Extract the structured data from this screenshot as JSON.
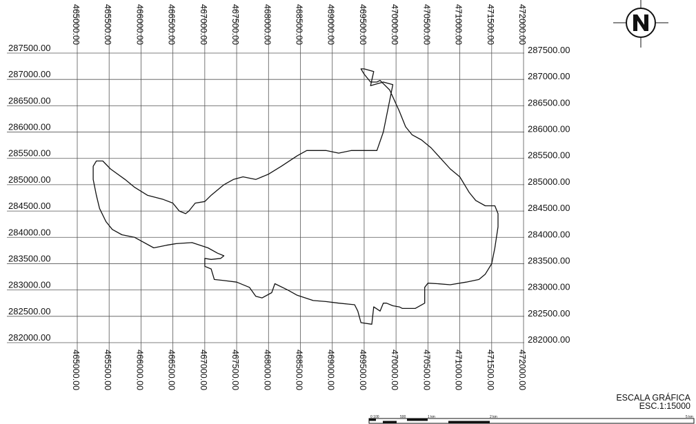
{
  "map": {
    "x_ticks": [
      "465000.00",
      "465500.00",
      "466000.00",
      "466500.00",
      "467000.00",
      "467500.00",
      "468000.00",
      "468500.00",
      "469000.00",
      "469500.00",
      "470000.00",
      "470500.00",
      "471000.00",
      "471500.00",
      "472000.00"
    ],
    "y_ticks": [
      "287500.00",
      "287000.00",
      "286500.00",
      "286000.00",
      "285500.00",
      "285000.00",
      "284500.00",
      "284000.00",
      "283500.00",
      "283000.00",
      "282500.00",
      "282000.00"
    ],
    "x_range": [
      465000,
      472000
    ],
    "y_range": [
      282000,
      287500
    ],
    "boundary_color": "#111111",
    "grid_color": "#555555",
    "boundary": [
      [
        465400,
        285450
      ],
      [
        465520,
        285300
      ],
      [
        465750,
        285100
      ],
      [
        465900,
        284950
      ],
      [
        466100,
        284800
      ],
      [
        466350,
        284720
      ],
      [
        466500,
        284650
      ],
      [
        466600,
        284500
      ],
      [
        466700,
        284450
      ],
      [
        466750,
        284500
      ],
      [
        466850,
        284650
      ],
      [
        467000,
        284680
      ],
      [
        467100,
        284800
      ],
      [
        467300,
        285000
      ],
      [
        467450,
        285100
      ],
      [
        467600,
        285150
      ],
      [
        467800,
        285100
      ],
      [
        468000,
        285200
      ],
      [
        468200,
        285350
      ],
      [
        468450,
        285550
      ],
      [
        468600,
        285650
      ],
      [
        468900,
        285650
      ],
      [
        469100,
        285600
      ],
      [
        469300,
        285650
      ],
      [
        469500,
        285650
      ],
      [
        469700,
        285650
      ],
      [
        469800,
        286000
      ],
      [
        469900,
        286600
      ],
      [
        469950,
        286900
      ],
      [
        469800,
        286950
      ],
      [
        469600,
        286880
      ],
      [
        469650,
        287150
      ],
      [
        469500,
        287200
      ],
      [
        469450,
        287200
      ],
      [
        469500,
        287100
      ],
      [
        469600,
        286950
      ],
      [
        469700,
        286950
      ],
      [
        469750,
        286980
      ],
      [
        469900,
        286800
      ],
      [
        470050,
        286400
      ],
      [
        470150,
        286100
      ],
      [
        470250,
        285950
      ],
      [
        470400,
        285850
      ],
      [
        470550,
        285700
      ],
      [
        470700,
        285500
      ],
      [
        470850,
        285300
      ],
      [
        471000,
        285150
      ],
      [
        471150,
        284850
      ],
      [
        471250,
        284700
      ],
      [
        471400,
        284600
      ],
      [
        471550,
        284600
      ],
      [
        471600,
        284450
      ],
      [
        471600,
        284200
      ],
      [
        471550,
        283800
      ],
      [
        471500,
        283500
      ],
      [
        471400,
        283300
      ],
      [
        471300,
        283200
      ],
      [
        471100,
        283150
      ],
      [
        470850,
        283100
      ],
      [
        470650,
        283120
      ],
      [
        470500,
        283130
      ],
      [
        470450,
        283050
      ],
      [
        470450,
        282750
      ],
      [
        470300,
        282650
      ],
      [
        470100,
        282650
      ],
      [
        470050,
        282680
      ],
      [
        469950,
        282700
      ],
      [
        469850,
        282750
      ],
      [
        469800,
        282750
      ],
      [
        469750,
        282600
      ],
      [
        469650,
        282680
      ],
      [
        469620,
        282350
      ],
      [
        469450,
        282380
      ],
      [
        469400,
        282600
      ],
      [
        469350,
        282720
      ],
      [
        469100,
        282750
      ],
      [
        468900,
        282780
      ],
      [
        468700,
        282800
      ],
      [
        468450,
        282900
      ],
      [
        468300,
        283000
      ],
      [
        468100,
        283120
      ],
      [
        468050,
        282950
      ],
      [
        467900,
        282850
      ],
      [
        467800,
        282880
      ],
      [
        467700,
        283050
      ],
      [
        467500,
        283150
      ],
      [
        467300,
        283180
      ],
      [
        467150,
        283200
      ],
      [
        467100,
        283400
      ],
      [
        467000,
        283450
      ],
      [
        467000,
        283600
      ],
      [
        467100,
        283580
      ],
      [
        467250,
        283600
      ],
      [
        467300,
        283650
      ],
      [
        467200,
        283700
      ],
      [
        467050,
        283800
      ],
      [
        466800,
        283900
      ],
      [
        466550,
        283880
      ],
      [
        466400,
        283850
      ],
      [
        466200,
        283800
      ],
      [
        465900,
        284000
      ],
      [
        465700,
        284050
      ],
      [
        465550,
        284150
      ],
      [
        465450,
        284300
      ],
      [
        465350,
        284550
      ],
      [
        465300,
        284800
      ],
      [
        465250,
        285100
      ],
      [
        465250,
        285350
      ],
      [
        465300,
        285450
      ],
      [
        465400,
        285450
      ]
    ]
  },
  "scale": {
    "title": "ESCALA GRÁFICA",
    "subtitle": "ESC.1:15000",
    "ticks": [
      "0  100",
      "500",
      "1 km",
      "2 km",
      "5 km"
    ]
  }
}
